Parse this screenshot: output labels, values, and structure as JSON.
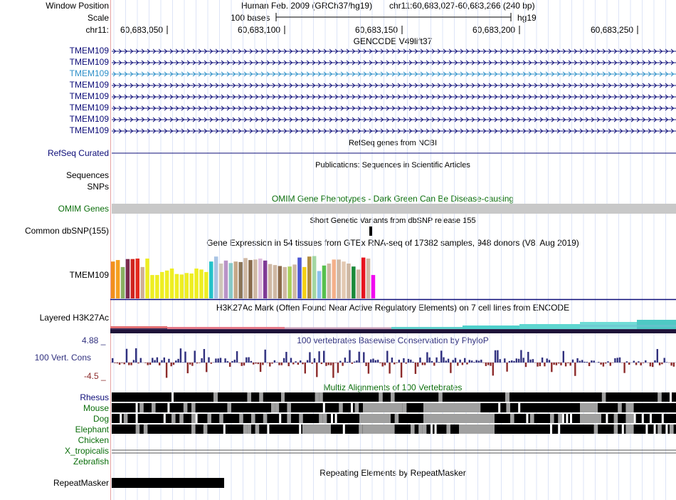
{
  "header": {
    "window_position_label": "Window Position",
    "scale_label": "Scale",
    "chrom_label": "chr11:",
    "assembly_text": "Human Feb. 2009 (GRCh37/hg19)",
    "position_text": "chr11:60,683,027-60,683,266 (240 bp)",
    "scale_text": "100 bases",
    "db_text": "hg19",
    "ruler_ticks": [
      "60,683,050",
      "60,683,100",
      "60,683,150",
      "60,683,200",
      "60,683,250"
    ]
  },
  "tracks": {
    "gencode": {
      "title": "GENCODE V49lift37",
      "items": [
        "TMEM109",
        "TMEM109",
        "TMEM109",
        "TMEM109",
        "TMEM109",
        "TMEM109",
        "TMEM109",
        "TMEM109"
      ],
      "highlight_index": 2,
      "color": "#0c0c78",
      "highlight_color": "#2c8fc8"
    },
    "refseq": {
      "label": "RefSeq Curated",
      "title": "RefSeq genes from NCBI",
      "color": "#0c0c78"
    },
    "publications": {
      "label": "Sequences",
      "title": "Publications: Sequences in Scientific Articles"
    },
    "snps": {
      "label": "SNPs"
    },
    "omim": {
      "label": "OMIM Genes",
      "title": "OMIM Gene Phenotypes - Dark Green Can Be Disease-causing",
      "color": "#0b6e0b"
    },
    "dbsnp": {
      "label": "Common dbSNP(155)",
      "title": "Short Genetic Variants from dbSNP release 155"
    },
    "gtex": {
      "label": "TMEM109",
      "title": "Gene Expression in 54 tissues from GTEx RNA-seq of 17382 samples, 948 donors (V8, Aug 2019)",
      "values": [
        0.74,
        0.77,
        0.63,
        0.79,
        0.79,
        0.8,
        0.63,
        0.8,
        0.47,
        0.47,
        0.53,
        0.56,
        0.6,
        0.49,
        0.48,
        0.51,
        0.5,
        0.6,
        0.58,
        0.53,
        0.74,
        0.84,
        0.7,
        0.76,
        0.71,
        0.74,
        0.73,
        0.81,
        0.77,
        0.78,
        0.8,
        0.76,
        0.69,
        0.67,
        0.65,
        0.63,
        0.64,
        0.68,
        0.82,
        0.63,
        0.84,
        0.85,
        0.55,
        0.66,
        0.7,
        0.78,
        0.78,
        0.74,
        0.7,
        0.64,
        0.58,
        0.82,
        0.8,
        0.47
      ],
      "colors": [
        "#f28f1c",
        "#f5a020",
        "#8ab062",
        "#7b2a4e",
        "#d0241f",
        "#e32a1e",
        "#d0b096",
        "#eeee22",
        "#eeee22",
        "#eeee22",
        "#eeee22",
        "#eeee22",
        "#eeee22",
        "#eeee22",
        "#eeee22",
        "#eeee22",
        "#eeee22",
        "#eeee22",
        "#eeee22",
        "#eeee22",
        "#24c2c9",
        "#a9c4e4",
        "#cfc6b8",
        "#b993c7",
        "#87c9c7",
        "#c6a888",
        "#8a7458",
        "#cfb8a4",
        "#886a4c",
        "#cfb8a4",
        "#ddbbdd",
        "#7f3a96",
        "#cfb8a4",
        "#cfb8a4",
        "#8b6a4a",
        "#cfb8a4",
        "#aad05a",
        "#cfb8a4",
        "#4a55d4",
        "#f5d015",
        "#b28e40",
        "#a3d7a3",
        "#8cc2ed",
        "#57c04e",
        "#cfb8a4",
        "#f4b08a",
        "#cfb8a4",
        "#e3c9b2",
        "#cfb8a4",
        "#1a8a3a",
        "#cfb8a4",
        "#e7121f",
        "#cfb8a4",
        "#f009f0"
      ]
    },
    "h3k27ac": {
      "label": "Layered H3K27Ac",
      "title": "H3K27Ac Mark (Often Found Near Active Regulatory Elements) on 7 cell lines from ENCODE"
    },
    "cons": {
      "label": "100 Vert. Cons",
      "title": "100 vertebrates Basewise Conservation by PhyloP",
      "max_label": "4.88 _",
      "min_label": "-4.5 _",
      "pos_color": "#30307e",
      "neg_color": "#8c2b2b",
      "range": [
        -4.5,
        4.88
      ]
    },
    "multiz": {
      "title": "Multiz Alignments of 100 Vertebrates",
      "species": [
        "Rhesus",
        "Mouse",
        "Dog",
        "Elephant",
        "Chicken",
        "X_tropicalis",
        "Zebrafish"
      ],
      "species_color": "#0b6e0b",
      "rhesus_color": "#0c0c78"
    },
    "repeatmasker": {
      "label": "RepeatMasker",
      "title": "Repeating Elements by RepeatMasker"
    }
  }
}
